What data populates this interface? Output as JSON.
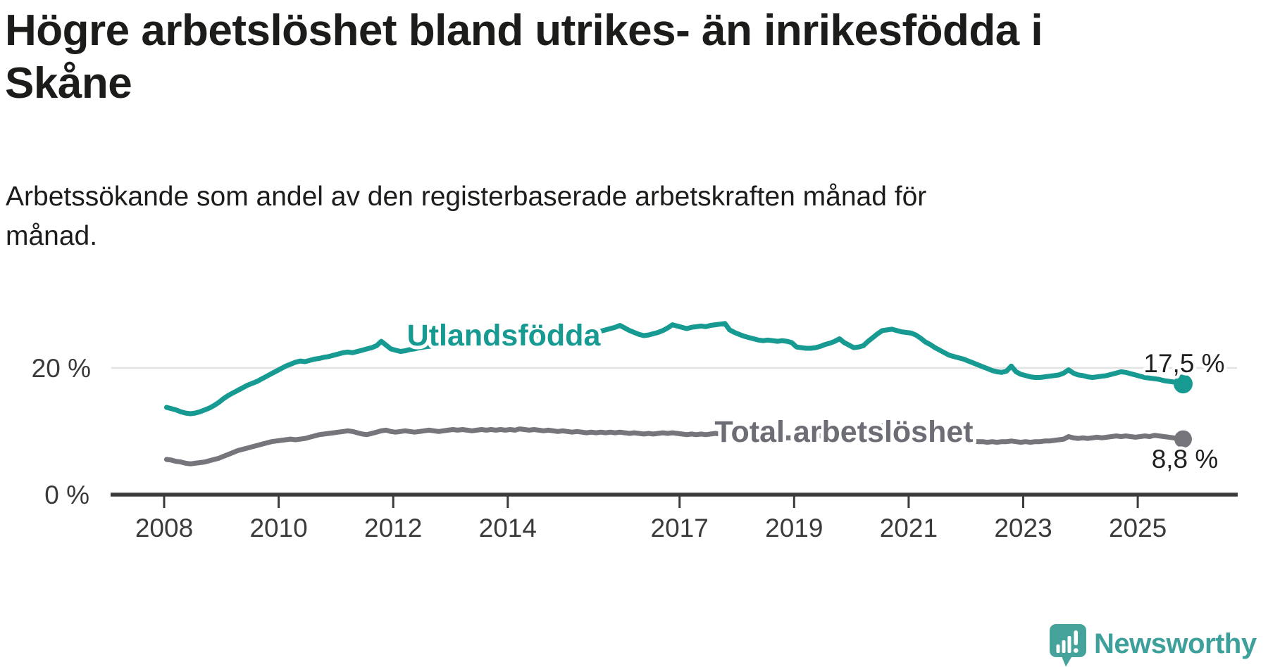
{
  "header": {
    "title": "Högre arbetslöshet bland utrikes- än inrikesfödda i\nSkåne",
    "subtitle": "Arbetssökande som andel av den registerbaserade arbetskraften månad för\nmånad."
  },
  "footer": {
    "brand": "Newsworthy",
    "logo_icon": "speech-bubble-bar-chart-exclamation"
  },
  "colors": {
    "foreign_series": "#169a91",
    "total_series": "#76757c",
    "total_label_text": "#6d6d75",
    "grid": "#e3e3e3",
    "axis": "#3b3b3b",
    "axis_text": "#3a3a3a",
    "heading_text": "#1c1c1a",
    "value_text": "#1f1f1f",
    "logo_bubble": "#46a39c",
    "logo_text": "#3da09a"
  },
  "chart_data": {
    "type": "line",
    "title": "Högre arbetslöshet bland utrikes- än inrikesfödda i Skåne",
    "subtitle": "Arbetssökande som andel av den registerbaserade arbetskraften månad för månad.",
    "xlabel": "",
    "ylabel": "",
    "x_unit": "month",
    "x_start": "2008-01",
    "x_end": "2025-10",
    "ylim": [
      0,
      30
    ],
    "grid": "single horizontal gridline at 20 %",
    "legend_position": "inline labels on lines",
    "x_axis_ticks": [
      2008,
      2010,
      2012,
      2014,
      2017,
      2019,
      2021,
      2023,
      2025
    ],
    "y_axis": {
      "ticks": [
        {
          "value": 0,
          "label": "0 %"
        },
        {
          "value": 20,
          "label": "20 %"
        }
      ]
    },
    "series": [
      {
        "name": "Utlandsfödda",
        "color": "#169a91",
        "end_label": "17,5 %",
        "end_value": 17.5,
        "values": [
          13.8,
          13.6,
          13.4,
          13.1,
          12.9,
          12.8,
          12.9,
          13.1,
          13.4,
          13.7,
          14.1,
          14.6,
          15.2,
          15.7,
          16.1,
          16.5,
          16.9,
          17.3,
          17.6,
          17.9,
          18.3,
          18.7,
          19.1,
          19.5,
          19.9,
          20.3,
          20.6,
          20.9,
          21.1,
          21.0,
          21.2,
          21.4,
          21.5,
          21.7,
          21.8,
          22.0,
          22.2,
          22.4,
          22.5,
          22.4,
          22.6,
          22.8,
          23.0,
          23.2,
          23.5,
          24.2,
          23.6,
          23.0,
          22.8,
          22.6,
          22.7,
          22.9,
          23.0,
          23.2,
          23.3,
          23.4,
          23.5,
          23.6,
          23.8,
          23.9,
          24.0,
          24.0,
          24.1,
          24.2,
          24.2,
          24.3,
          24.4,
          24.4,
          24.5,
          24.5,
          24.6,
          24.6,
          24.7,
          24.7,
          24.8,
          24.8,
          24.9,
          24.9,
          25.0,
          25.0,
          25.1,
          25.1,
          25.0,
          25.2,
          25.3,
          25.2,
          25.4,
          25.3,
          25.5,
          25.4,
          25.6,
          25.8,
          26.0,
          26.2,
          26.4,
          26.7,
          26.3,
          25.9,
          25.6,
          25.3,
          25.1,
          25.2,
          25.4,
          25.6,
          25.9,
          26.3,
          26.8,
          26.6,
          26.4,
          26.2,
          26.4,
          26.5,
          26.6,
          26.5,
          26.7,
          26.8,
          26.9,
          27.0,
          26.0,
          25.6,
          25.3,
          25.0,
          24.8,
          24.6,
          24.4,
          24.3,
          24.4,
          24.3,
          24.2,
          24.3,
          24.2,
          24.0,
          23.3,
          23.2,
          23.1,
          23.1,
          23.2,
          23.4,
          23.7,
          23.9,
          24.2,
          24.6,
          24.0,
          23.6,
          23.2,
          23.3,
          23.5,
          24.2,
          24.8,
          25.4,
          25.9,
          26.0,
          26.1,
          25.9,
          25.7,
          25.6,
          25.5,
          25.2,
          24.7,
          24.1,
          23.7,
          23.2,
          22.8,
          22.4,
          22.0,
          21.8,
          21.6,
          21.4,
          21.1,
          20.8,
          20.5,
          20.2,
          19.9,
          19.6,
          19.4,
          19.3,
          19.5,
          20.3,
          19.4,
          19.0,
          18.8,
          18.6,
          18.5,
          18.5,
          18.6,
          18.7,
          18.8,
          18.9,
          19.2,
          19.7,
          19.2,
          18.9,
          18.8,
          18.6,
          18.5,
          18.6,
          18.7,
          18.8,
          19.0,
          19.2,
          19.4,
          19.3,
          19.1,
          18.9,
          18.7,
          18.5,
          18.4,
          18.3,
          18.2,
          18.0,
          17.9,
          17.8,
          17.6,
          17.5
        ]
      },
      {
        "name": "Total arbetslöshet",
        "color": "#76757c",
        "end_label": "8,8 %",
        "end_value": 8.8,
        "values": [
          5.6,
          5.5,
          5.3,
          5.2,
          5.0,
          4.9,
          5.0,
          5.1,
          5.2,
          5.4,
          5.6,
          5.8,
          6.1,
          6.4,
          6.7,
          7.0,
          7.2,
          7.4,
          7.6,
          7.8,
          8.0,
          8.2,
          8.4,
          8.5,
          8.6,
          8.7,
          8.8,
          8.7,
          8.8,
          8.9,
          9.1,
          9.3,
          9.5,
          9.6,
          9.7,
          9.8,
          9.9,
          10.0,
          10.1,
          10.0,
          9.8,
          9.6,
          9.5,
          9.7,
          9.9,
          10.1,
          10.2,
          10.0,
          9.9,
          10.0,
          10.1,
          10.0,
          9.9,
          10.0,
          10.1,
          10.2,
          10.1,
          10.0,
          10.1,
          10.2,
          10.3,
          10.2,
          10.3,
          10.2,
          10.1,
          10.2,
          10.3,
          10.2,
          10.3,
          10.2,
          10.3,
          10.2,
          10.3,
          10.2,
          10.4,
          10.3,
          10.2,
          10.3,
          10.2,
          10.1,
          10.2,
          10.1,
          10.0,
          10.1,
          10.0,
          9.9,
          10.0,
          9.9,
          9.8,
          9.9,
          9.8,
          9.9,
          9.8,
          9.9,
          9.8,
          9.9,
          9.8,
          9.7,
          9.8,
          9.7,
          9.6,
          9.7,
          9.6,
          9.7,
          9.8,
          9.7,
          9.8,
          9.7,
          9.6,
          9.5,
          9.6,
          9.5,
          9.6,
          9.5,
          9.6,
          9.7,
          9.6,
          9.5,
          9.4,
          9.3,
          9.2,
          9.1,
          9.2,
          9.1,
          9.0,
          9.1,
          9.0,
          8.9,
          9.0,
          8.9,
          9.0,
          9.0,
          9.1,
          9.1,
          9.2,
          9.3,
          9.4,
          9.3,
          9.4,
          9.5,
          9.4,
          9.6,
          9.5,
          9.4,
          9.5,
          9.6,
          9.9,
          10.3,
          10.6,
          10.8,
          10.9,
          10.8,
          10.7,
          10.6,
          10.5,
          10.4,
          10.3,
          10.1,
          9.9,
          9.7,
          9.5,
          9.3,
          9.1,
          9.0,
          8.9,
          8.8,
          8.7,
          8.6,
          8.6,
          8.5,
          8.4,
          8.4,
          8.3,
          8.4,
          8.3,
          8.4,
          8.4,
          8.5,
          8.4,
          8.3,
          8.4,
          8.3,
          8.4,
          8.4,
          8.5,
          8.5,
          8.6,
          8.7,
          8.8,
          9.2,
          9.0,
          8.9,
          9.0,
          8.9,
          9.0,
          9.1,
          9.0,
          9.1,
          9.2,
          9.3,
          9.2,
          9.3,
          9.2,
          9.1,
          9.2,
          9.3,
          9.2,
          9.4,
          9.3,
          9.2,
          9.1,
          9.0,
          8.9,
          8.8
        ]
      }
    ]
  }
}
